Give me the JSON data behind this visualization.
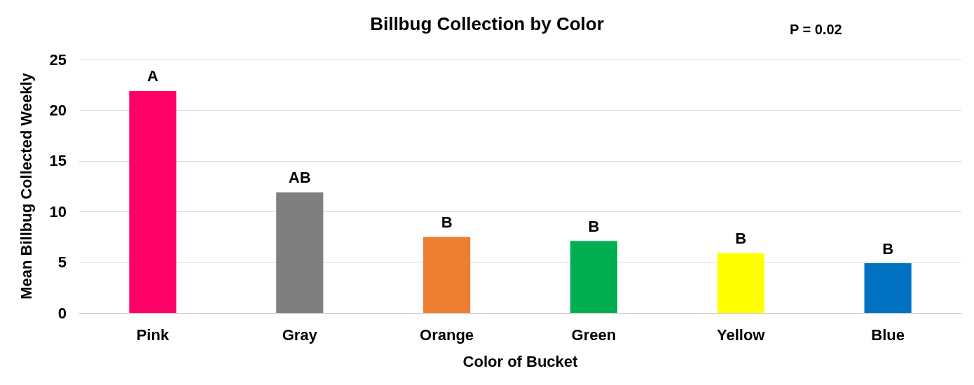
{
  "chart_data": {
    "type": "bar",
    "title": "Billbug Collection by Color",
    "xlabel": "Color of Bucket",
    "ylabel": "Mean Billbug Collected Weekly",
    "categories": [
      "Pink",
      "Gray",
      "Orange",
      "Green",
      "Yellow",
      "Blue"
    ],
    "values": [
      21.9,
      11.9,
      7.5,
      7.1,
      5.9,
      4.9
    ],
    "colors": [
      "#ff0066",
      "#7f7f7f",
      "#ed7d31",
      "#00b050",
      "#ffff00",
      "#0070c0"
    ],
    "ylim": [
      0,
      25
    ],
    "yticks": [
      0,
      5,
      10,
      15,
      20,
      25
    ],
    "grid": "y",
    "annotations": [
      {
        "text": "A",
        "x": "Pink",
        "y": 21.9
      },
      {
        "text": "AB",
        "x": "Gray",
        "y": 11.9
      },
      {
        "text": "B",
        "x": "Orange",
        "y": 7.5
      },
      {
        "text": "B",
        "x": "Green",
        "y": 7.1
      },
      {
        "text": "B",
        "x": "Yellow",
        "y": 5.9
      },
      {
        "text": "B",
        "x": "Blue",
        "y": 4.9
      },
      "P = 0.02"
    ]
  }
}
